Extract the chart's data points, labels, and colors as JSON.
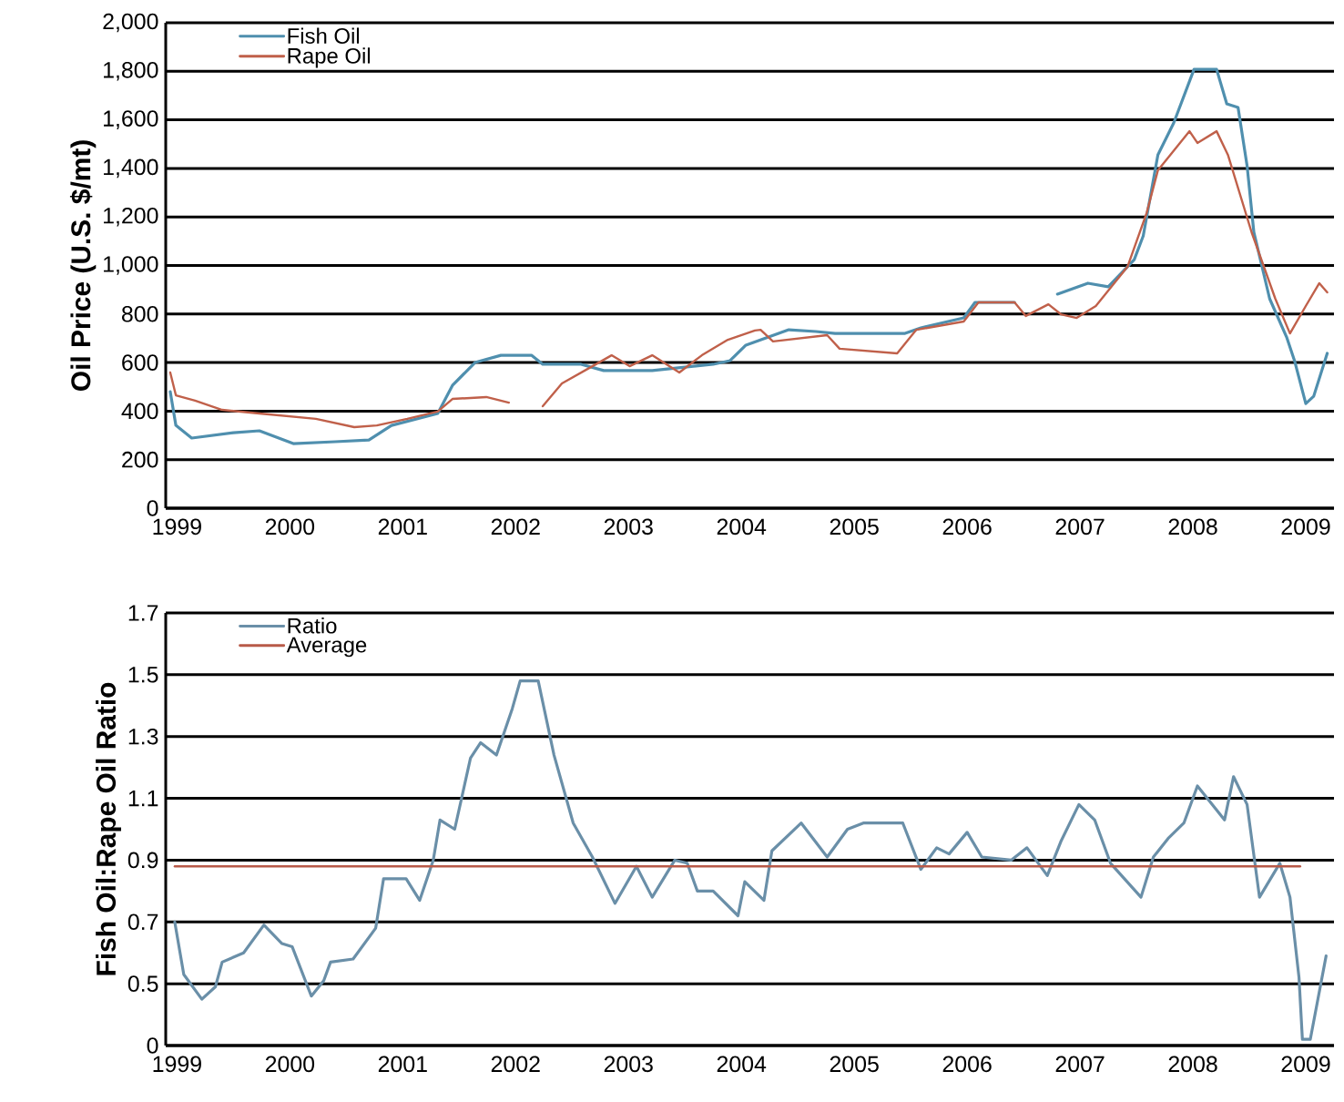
{
  "chart_data": [
    {
      "type": "line",
      "ylabel": "Oil Price (U.S. $/mt)",
      "xlim": [
        1998.9,
        2009.25
      ],
      "xticks": [
        1999,
        2000,
        2001,
        2002,
        2003,
        2004,
        2005,
        2006,
        2007,
        2008,
        2009
      ],
      "ylim": [
        0,
        2000
      ],
      "yticks": [
        0,
        {
          "value": 200,
          "label": "200"
        },
        {
          "value": 400,
          "label": "400"
        },
        {
          "value": 600,
          "label": "600"
        },
        {
          "value": 800,
          "label": "800"
        },
        {
          "value": 1000,
          "label": "1,000"
        },
        {
          "value": 1200,
          "label": "1,200"
        },
        {
          "value": 1400,
          "label": "1,400"
        },
        {
          "value": 1600,
          "label": "1,600"
        },
        {
          "value": 1800,
          "label": "1,800"
        },
        {
          "value": 2000,
          "label": "2,000"
        }
      ],
      "grid": "y",
      "legend": "top left",
      "series": [
        {
          "name": "Fish Oil",
          "color": "#4f8fae",
          "x": [
            1998.94,
            1998.99,
            1999.13,
            1999.5,
            1999.73,
            2000.03,
            2000.4,
            2000.7,
            2000.9,
            2001.31,
            2001.44,
            2001.64,
            2001.87,
            2002.14,
            2002.24,
            2002.58,
            2002.78,
            2003.21,
            2003.75,
            2003.9,
            2004.04,
            2004.42,
            2004.66,
            2004.83,
            2005.45,
            2005.59,
            2005.97,
            2006.07,
            2006.42,
            2006.6,
            2006.8,
            2007.07,
            2007.25,
            2007.48,
            2007.56,
            2007.69,
            2007.83,
            2008.01,
            2008.21,
            2008.3,
            2008.4,
            2008.48,
            2008.54,
            2008.68,
            2008.83,
            2008.9,
            2009.0,
            2009.07,
            2009.19
          ],
          "values": [
            480,
            341,
            289,
            311,
            319,
            266,
            274,
            281,
            341,
            390,
            506,
            600,
            630,
            630,
            593,
            593,
            567,
            567,
            593,
            608,
            672,
            735,
            728,
            720,
            720,
            743,
            784,
            848,
            848,
            null,
            882,
            927,
            912,
            1024,
            1122,
            1456,
            1587,
            1808,
            1808,
            1666,
            1651,
            1411,
            1137,
            863,
            705,
            608,
            431,
            461,
            638
          ]
        },
        {
          "name": "Rape Oil",
          "color": "#c0604a",
          "x": [
            1998.94,
            1998.99,
            1999.16,
            1999.4,
            1999.73,
            2000.23,
            2000.57,
            2000.77,
            2001.04,
            2001.31,
            2001.44,
            2001.74,
            2001.94,
            2002.1,
            2002.24,
            2002.41,
            2002.68,
            2002.85,
            2003.01,
            2003.21,
            2003.45,
            2003.65,
            2003.88,
            2004.12,
            2004.17,
            2004.28,
            2004.76,
            2004.87,
            2005.38,
            2005.55,
            2005.97,
            2006.1,
            2006.42,
            2006.52,
            2006.72,
            2006.83,
            2006.97,
            2007.14,
            2007.42,
            2007.59,
            2007.69,
            2007.97,
            2008.04,
            2008.21,
            2008.31,
            2008.52,
            2008.73,
            2008.86,
            2009.0,
            2009.12,
            2009.19
          ],
          "values": [
            559,
            465,
            443,
            405,
            390,
            368,
            334,
            341,
            368,
            398,
            450,
            458,
            435,
            null,
            420,
            514,
            585,
            630,
            585,
            630,
            559,
            630,
            694,
            732,
            735,
            687,
            713,
            657,
            638,
            735,
            769,
            848,
            848,
            792,
            840,
            799,
            784,
            833,
            994,
            1216,
            1392,
            1553,
            1505,
            1553,
            1456,
            1137,
            863,
            720,
            833,
            927,
            889
          ]
        }
      ]
    },
    {
      "type": "line",
      "ylabel": "Fish Oil:Rape Oil Ratio",
      "xlim": [
        1998.9,
        2009.25
      ],
      "xticks": [
        1999,
        2000,
        2001,
        2002,
        2003,
        2004,
        2005,
        2006,
        2007,
        2008,
        2009
      ],
      "ylim": [
        0.3,
        1.7
      ],
      "yticks": [
        {
          "value": 0.3,
          "label": "0"
        },
        0.5,
        0.7,
        0.9,
        1.1,
        1.3,
        1.5,
        1.7
      ],
      "grid": "y",
      "legend": "top left",
      "series": [
        {
          "name": "Ratio",
          "color": "#6a8fa8",
          "x": [
            1998.98,
            1999.06,
            1999.22,
            1999.34,
            1999.4,
            1999.59,
            1999.77,
            1999.93,
            2000.02,
            2000.19,
            2000.3,
            2000.36,
            2000.56,
            2000.76,
            2000.83,
            2001.03,
            2001.15,
            2001.27,
            2001.33,
            2001.46,
            2001.6,
            2001.69,
            2001.83,
            2001.97,
            2002.04,
            2002.2,
            2002.34,
            2002.51,
            2002.68,
            2002.88,
            2003.07,
            2003.21,
            2003.41,
            2003.52,
            2003.61,
            2003.75,
            2003.97,
            2004.03,
            2004.2,
            2004.27,
            2004.53,
            2004.76,
            2004.94,
            2005.08,
            2005.43,
            2005.59,
            2005.73,
            2005.84,
            2006.0,
            2006.13,
            2006.39,
            2006.53,
            2006.71,
            2006.83,
            2006.99,
            2007.13,
            2007.27,
            2007.54,
            2007.65,
            2007.78,
            2007.92,
            2008.04,
            2008.28,
            2008.36,
            2008.48,
            2008.59,
            2008.77,
            2008.86,
            2008.94,
            2008.97,
            2009.04,
            2009.18
          ],
          "values": [
            0.7,
            0.53,
            0.45,
            0.49,
            0.57,
            0.6,
            0.69,
            0.63,
            0.62,
            0.46,
            0.51,
            0.57,
            0.58,
            0.68,
            0.84,
            0.84,
            0.77,
            0.9,
            1.03,
            1.0,
            1.23,
            1.28,
            1.24,
            1.39,
            1.48,
            1.48,
            1.24,
            1.02,
            0.91,
            0.76,
            0.88,
            0.78,
            0.9,
            0.89,
            0.8,
            0.8,
            0.72,
            0.83,
            0.77,
            0.93,
            1.02,
            0.91,
            1.0,
            1.02,
            1.02,
            0.87,
            0.94,
            0.92,
            0.99,
            0.91,
            0.9,
            0.94,
            0.85,
            0.96,
            1.08,
            1.03,
            0.89,
            0.78,
            0.91,
            0.97,
            1.02,
            1.14,
            1.03,
            1.17,
            1.08,
            0.78,
            0.89,
            0.78,
            0.52,
            0.32,
            0.32,
            0.59
          ]
        },
        {
          "name": "Average",
          "color": "#b85a48",
          "x": [
            1998.98,
            2008.95
          ],
          "values": [
            0.88,
            0.88
          ]
        }
      ]
    }
  ]
}
